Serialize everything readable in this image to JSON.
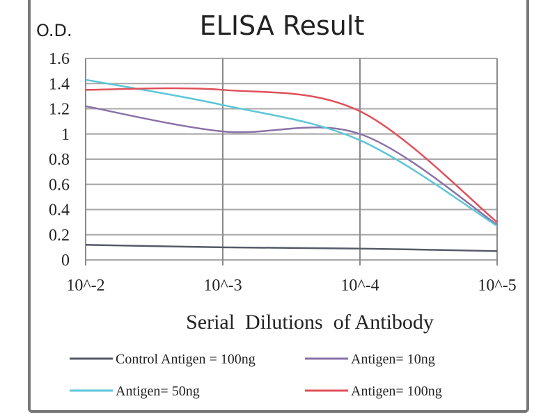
{
  "chart_data": {
    "type": "line",
    "title": "ELISA Result",
    "ylabel": "O.D.",
    "xlabel": "Serial  Dilutions  of Antibody",
    "categories": [
      "10^-2",
      "10^-3",
      "10^-4",
      "10^-5"
    ],
    "ylim": [
      0,
      1.6
    ],
    "yticks": [
      "0",
      "0.2",
      "0.4",
      "0.6",
      "0.8",
      "1",
      "1.2",
      "1.4",
      "1.6"
    ],
    "grid": true,
    "legend_position": "bottom",
    "series": [
      {
        "name": "Control Antigen = 100ng",
        "color": "#555a66",
        "values": [
          0.12,
          0.1,
          0.09,
          0.07
        ]
      },
      {
        "name": "Antigen= 10ng",
        "color": "#8a72a8",
        "values": [
          1.22,
          1.02,
          1.0,
          0.28
        ]
      },
      {
        "name": "Antigen= 50ng",
        "color": "#5cc6d8",
        "values": [
          1.43,
          1.23,
          0.95,
          0.27
        ]
      },
      {
        "name": "Antigen= 100ng",
        "color": "#e0505a",
        "values": [
          1.35,
          1.35,
          1.18,
          0.3
        ]
      }
    ]
  }
}
